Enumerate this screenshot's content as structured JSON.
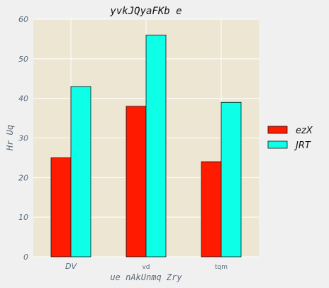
{
  "chart_data": {
    "type": "bar",
    "title": "yvkJQyaFKb e",
    "xlabel": "ue nAkUnmq Zry",
    "ylabel": "Hr  Uq",
    "categories": [
      "DV",
      "vd",
      "tqm"
    ],
    "series": [
      {
        "name": "ezX",
        "values": [
          25,
          38,
          24
        ],
        "color": "#ff1a00"
      },
      {
        "name": "JRT",
        "values": [
          43,
          56,
          39
        ],
        "color": "#0effe8"
      }
    ],
    "ylim": [
      0,
      60
    ],
    "yticks": [
      0,
      10,
      20,
      30,
      40,
      50,
      60
    ],
    "grid": true,
    "legend_position": "right",
    "plot_background": "#ede6d3"
  }
}
